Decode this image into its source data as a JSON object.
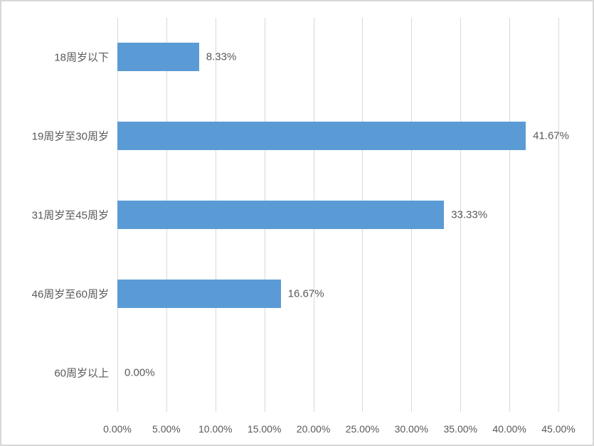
{
  "chart_data": {
    "type": "bar",
    "orientation": "horizontal",
    "title": "",
    "categories": [
      "18周岁以下",
      "19周岁至30周岁",
      "31周岁至45周岁",
      "46周岁至60周岁",
      "60周岁以上"
    ],
    "values": [
      8.33,
      41.67,
      33.33,
      16.67,
      0.0
    ],
    "value_labels": [
      "8.33%",
      "41.67%",
      "33.33%",
      "16.67%",
      "0.00%"
    ],
    "x_tick_labels": [
      "0.00%",
      "5.00%",
      "10.00%",
      "15.00%",
      "20.00%",
      "25.00%",
      "30.00%",
      "35.00%",
      "40.00%",
      "45.00%"
    ],
    "x_tick_values": [
      0,
      5,
      10,
      15,
      20,
      25,
      30,
      35,
      40,
      45
    ],
    "xlim": [
      0,
      45
    ],
    "grid": true,
    "legend": "none",
    "colors": {
      "bar": "#5B9BD5",
      "gridline": "#D9D9D9",
      "text": "#595959",
      "frame_border": "#D7D7D7",
      "background": "#FFFFFF"
    }
  }
}
